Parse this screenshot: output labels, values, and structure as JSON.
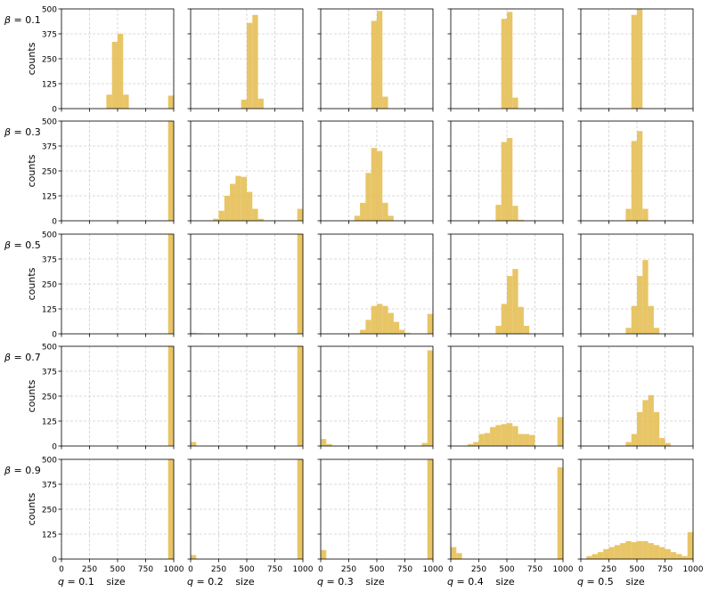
{
  "chart_data": {
    "type": "histogram-grid",
    "rows": [
      "β = 0.1",
      "β = 0.3",
      "β = 0.5",
      "β = 0.7",
      "β = 0.9"
    ],
    "row_symbol": "β",
    "row_values": [
      "0.1",
      "0.3",
      "0.5",
      "0.7",
      "0.9"
    ],
    "col_symbol": "q",
    "col_values": [
      "0.1",
      "0.2",
      "0.3",
      "0.4",
      "0.5"
    ],
    "ylabel": "counts",
    "xlabel": "size",
    "xlim": [
      0,
      1000
    ],
    "ylim": [
      0,
      500
    ],
    "xticks": [
      "0",
      "250",
      "500",
      "750",
      "1000"
    ],
    "yticks": [
      "0",
      "125",
      "250",
      "375",
      "500"
    ],
    "bar_color": "#E6BF55",
    "bin_width": 50,
    "bins_start": [
      0,
      50,
      100,
      150,
      200,
      250,
      300,
      350,
      400,
      450,
      500,
      550,
      600,
      650,
      700,
      750,
      800,
      850,
      900,
      950
    ],
    "panels": [
      [
        [
          0,
          0,
          0,
          0,
          0,
          0,
          0,
          0,
          70,
          335,
          375,
          70,
          0,
          0,
          0,
          0,
          0,
          0,
          0,
          65
        ],
        [
          0,
          0,
          0,
          0,
          0,
          0,
          0,
          0,
          0,
          45,
          430,
          470,
          50,
          0,
          0,
          0,
          0,
          0,
          0,
          0
        ],
        [
          0,
          0,
          0,
          0,
          0,
          0,
          0,
          0,
          0,
          440,
          490,
          60,
          0,
          0,
          0,
          0,
          0,
          0,
          0,
          0
        ],
        [
          0,
          0,
          0,
          0,
          0,
          0,
          0,
          0,
          0,
          450,
          485,
          55,
          0,
          0,
          0,
          0,
          0,
          0,
          0,
          0
        ],
        [
          0,
          0,
          0,
          0,
          0,
          0,
          0,
          0,
          0,
          470,
          500,
          0,
          0,
          0,
          0,
          0,
          0,
          0,
          0,
          0
        ]
      ],
      [
        [
          0,
          0,
          0,
          0,
          0,
          0,
          0,
          0,
          0,
          0,
          0,
          0,
          0,
          0,
          0,
          0,
          0,
          0,
          0,
          500
        ],
        [
          0,
          0,
          0,
          0,
          10,
          50,
          125,
          185,
          225,
          220,
          145,
          60,
          10,
          0,
          0,
          0,
          0,
          0,
          0,
          60
        ],
        [
          0,
          0,
          0,
          0,
          0,
          0,
          25,
          90,
          240,
          365,
          350,
          90,
          25,
          0,
          0,
          0,
          0,
          0,
          0,
          0
        ],
        [
          0,
          0,
          0,
          0,
          0,
          0,
          0,
          0,
          80,
          395,
          415,
          75,
          5,
          0,
          0,
          0,
          0,
          0,
          0,
          0
        ],
        [
          0,
          0,
          0,
          0,
          0,
          0,
          0,
          0,
          60,
          400,
          450,
          60,
          0,
          0,
          0,
          0,
          0,
          0,
          0,
          0
        ]
      ],
      [
        [
          0,
          0,
          0,
          0,
          0,
          0,
          0,
          0,
          0,
          0,
          0,
          0,
          0,
          0,
          0,
          0,
          0,
          0,
          0,
          500
        ],
        [
          5,
          3,
          0,
          0,
          0,
          0,
          0,
          0,
          0,
          0,
          0,
          0,
          0,
          0,
          0,
          0,
          0,
          0,
          0,
          500
        ],
        [
          0,
          0,
          0,
          0,
          0,
          0,
          0,
          20,
          70,
          140,
          150,
          140,
          105,
          60,
          20,
          5,
          0,
          0,
          0,
          100
        ],
        [
          0,
          0,
          0,
          0,
          0,
          0,
          0,
          0,
          40,
          150,
          290,
          325,
          135,
          40,
          0,
          0,
          0,
          0,
          0,
          0
        ],
        [
          0,
          0,
          0,
          0,
          0,
          0,
          0,
          0,
          30,
          140,
          290,
          370,
          140,
          30,
          0,
          0,
          0,
          0,
          0,
          0
        ]
      ],
      [
        [
          0,
          0,
          0,
          0,
          0,
          0,
          0,
          0,
          0,
          0,
          0,
          0,
          0,
          0,
          0,
          0,
          0,
          0,
          0,
          500
        ],
        [
          20,
          0,
          0,
          0,
          0,
          0,
          0,
          0,
          0,
          0,
          0,
          0,
          0,
          0,
          0,
          0,
          0,
          0,
          0,
          500
        ],
        [
          35,
          10,
          0,
          0,
          0,
          0,
          0,
          0,
          0,
          0,
          0,
          0,
          0,
          0,
          0,
          0,
          0,
          0,
          15,
          480
        ],
        [
          0,
          0,
          0,
          10,
          20,
          60,
          65,
          95,
          105,
          110,
          115,
          100,
          60,
          60,
          55,
          0,
          0,
          0,
          0,
          145
        ],
        [
          0,
          0,
          0,
          0,
          0,
          0,
          0,
          0,
          20,
          60,
          170,
          230,
          255,
          170,
          40,
          15,
          0,
          0,
          0,
          0
        ]
      ],
      [
        [
          0,
          0,
          0,
          0,
          0,
          0,
          0,
          0,
          0,
          0,
          0,
          0,
          0,
          0,
          0,
          0,
          0,
          0,
          0,
          500
        ],
        [
          20,
          0,
          0,
          0,
          0,
          0,
          0,
          0,
          0,
          0,
          0,
          0,
          0,
          0,
          0,
          0,
          0,
          0,
          0,
          500
        ],
        [
          45,
          0,
          0,
          0,
          0,
          0,
          0,
          0,
          0,
          0,
          0,
          0,
          0,
          0,
          0,
          0,
          0,
          0,
          0,
          500
        ],
        [
          60,
          30,
          0,
          0,
          0,
          0,
          0,
          0,
          0,
          0,
          0,
          0,
          0,
          0,
          0,
          0,
          0,
          0,
          0,
          460
        ],
        [
          0,
          15,
          25,
          35,
          50,
          60,
          70,
          80,
          90,
          85,
          90,
          90,
          80,
          70,
          60,
          50,
          35,
          25,
          15,
          135
        ]
      ]
    ]
  }
}
